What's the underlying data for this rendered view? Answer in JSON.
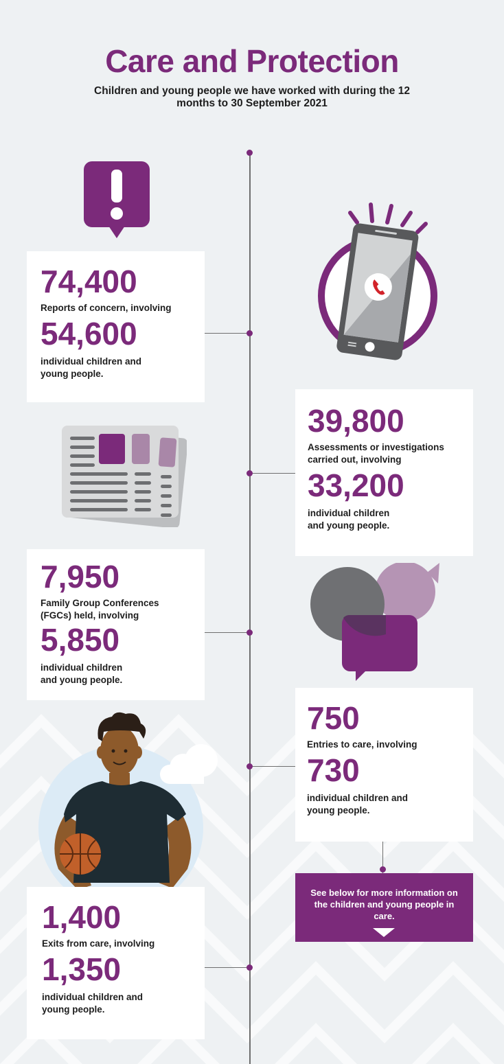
{
  "page": {
    "title": "Care and Protection",
    "subtitle": "Children and young people we have worked with during the 12 months to 30 September 2021"
  },
  "colors": {
    "accent": "#7b2a7a",
    "background": "#eef1f3",
    "text": "#1d1d1d"
  },
  "stats": [
    {
      "value": "74,400",
      "label": "Reports of concern, involving",
      "value2": "54,600",
      "label2": "individual children and young people.",
      "icon": "alert-speech-bubble-icon"
    },
    {
      "value": "39,800",
      "label": "Assessments or investigations carried out, involving",
      "value2": "33,200",
      "label2": "individual children and young people.",
      "icon": "mobile-phone-call-icon"
    },
    {
      "value": "7,950",
      "label": "Family Group Conferences (FGCs) held, involving",
      "value2": "5,850",
      "label2": "individual children and young people.",
      "icon": "documents-icon"
    },
    {
      "value": "750",
      "label": "Entries to care, involving",
      "value2": "730",
      "label2": "individual children and young people.",
      "icon": "speech-bubbles-icon"
    },
    {
      "value": "1,400",
      "label": "Exits from care, involving",
      "value2": "1,350",
      "label2": "individual children and young people.",
      "icon": "young-person-basketball-icon"
    }
  ],
  "cta": {
    "text": "See below for more information on the children and young people in care.",
    "icon": "arrow-down-icon"
  }
}
